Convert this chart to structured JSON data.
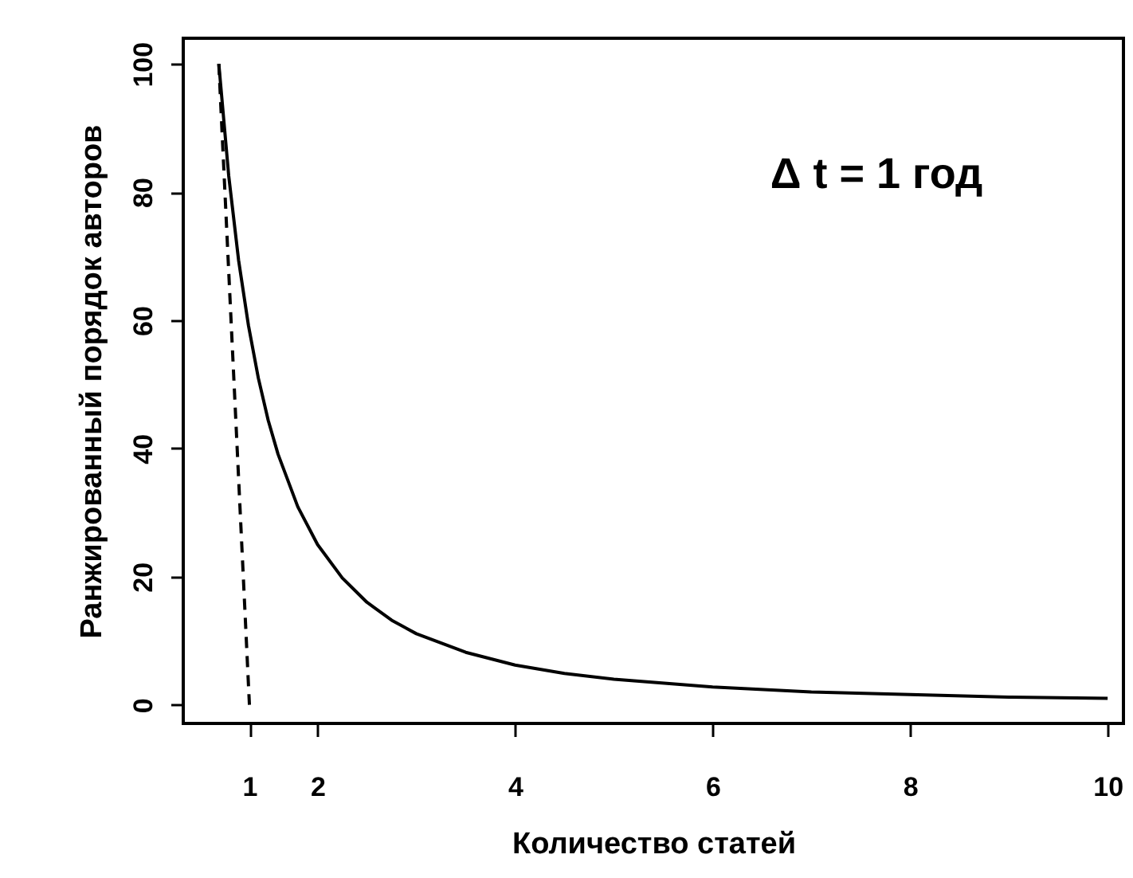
{
  "chart_data": {
    "type": "line",
    "xlabel": "Количество   статей",
    "ylabel": "Ранжированный порядок авторов",
    "annotations": [
      "Δ t = 1 год"
    ],
    "xlim": [
      0.64,
      10.16
    ],
    "ylim": [
      -2.9,
      104
    ],
    "xticks": [
      {
        "value": 1.31,
        "label": "1"
      },
      2,
      4,
      6,
      8,
      10
    ],
    "yticks": [
      0,
      20,
      40,
      60,
      80,
      100
    ],
    "grid": false,
    "marker": "none",
    "series": [
      {
        "color": "#000000",
        "line_style": "solid",
        "x": [
          1,
          1.1,
          1.2,
          1.3,
          1.4,
          1.5,
          1.6,
          1.8,
          2,
          2.25,
          2.5,
          2.75,
          3,
          3.5,
          4,
          4.5,
          5,
          6,
          7,
          8,
          9,
          10
        ],
        "values": [
          100,
          82.6,
          69.4,
          59.2,
          51,
          44.4,
          39.1,
          30.9,
          25,
          19.8,
          16,
          13.2,
          11.1,
          8.2,
          6.2,
          4.9,
          4,
          2.8,
          2,
          1.6,
          1.2,
          1
        ]
      },
      {
        "color": "#000000",
        "line_style": "dashed",
        "x": [
          1,
          1.31
        ],
        "values": [
          100,
          0
        ]
      }
    ]
  }
}
